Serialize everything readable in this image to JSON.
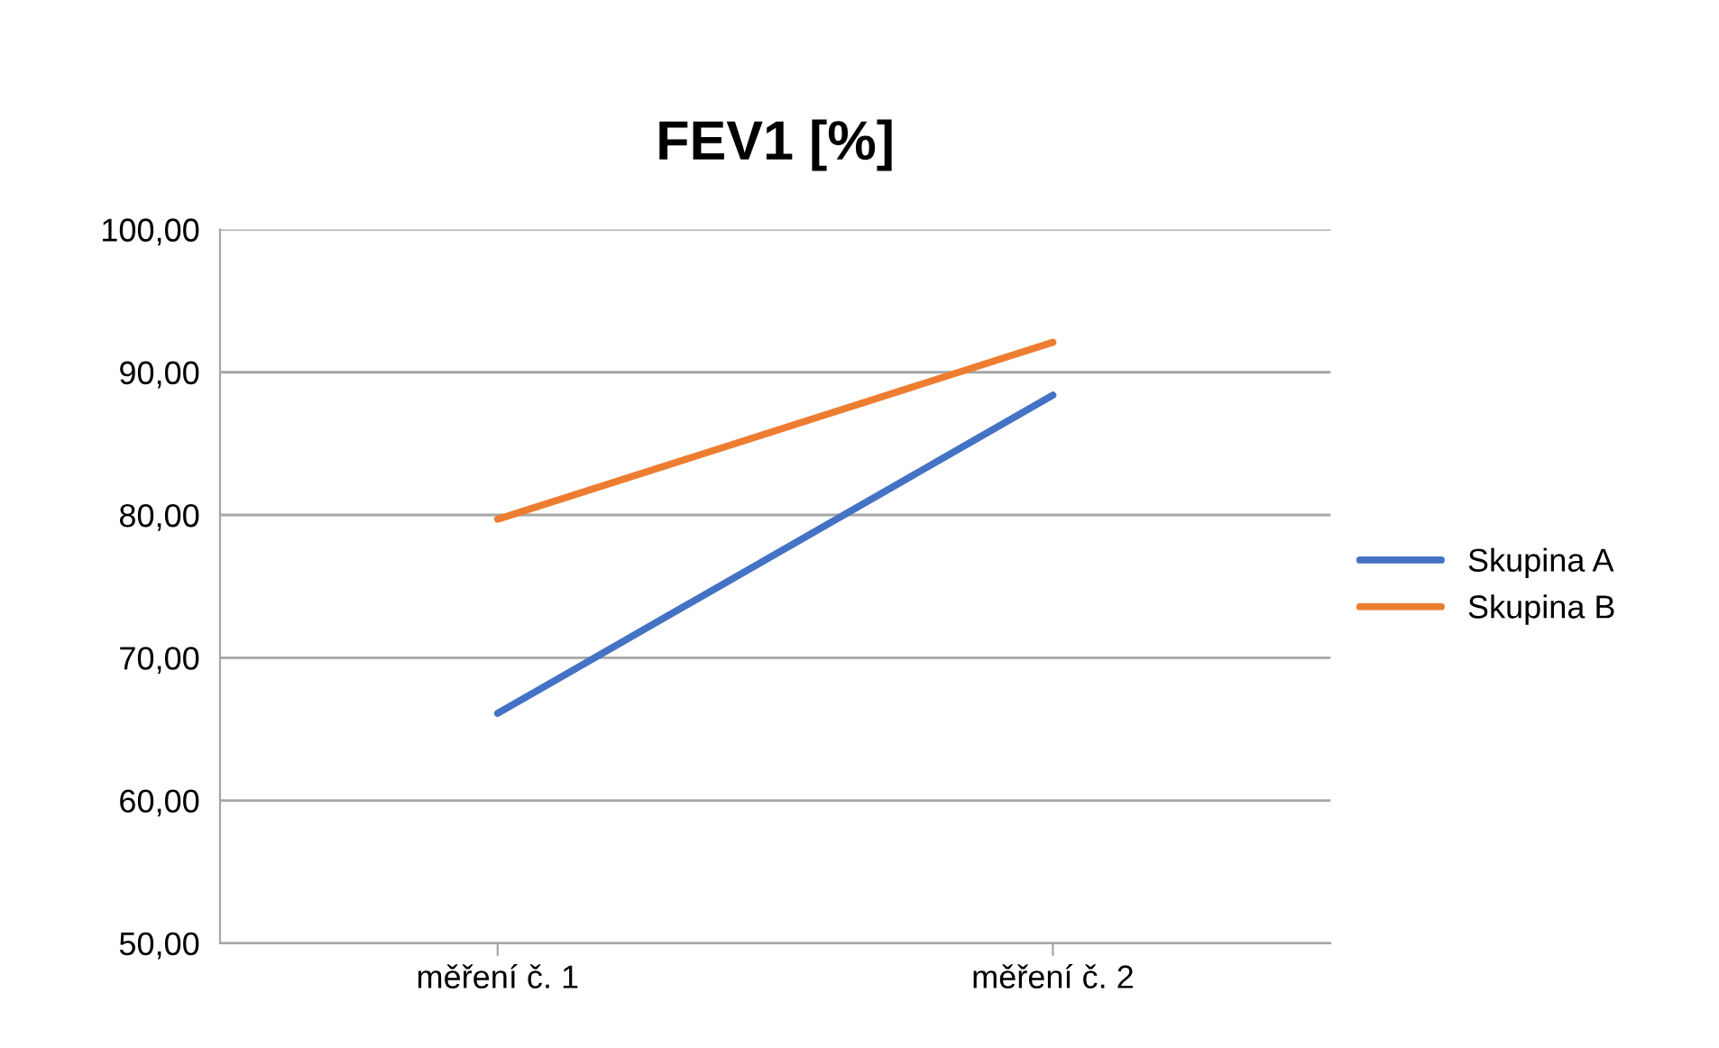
{
  "chart_data": {
    "type": "line",
    "title": "FEV1 [%]",
    "categories": [
      "měření č. 1",
      "měření č. 2"
    ],
    "series": [
      {
        "name": "Skupina A",
        "color": "#4472c4",
        "values": [
          66.1,
          88.4
        ]
      },
      {
        "name": "Skupina B",
        "color": "#ed7d31",
        "values": [
          79.7,
          92.1
        ]
      }
    ],
    "ylim": [
      50,
      100
    ],
    "yticks": [
      {
        "value": 50,
        "label": "50,00"
      },
      {
        "value": 60,
        "label": "60,00"
      },
      {
        "value": 70,
        "label": "70,00"
      },
      {
        "value": 80,
        "label": "80,00"
      },
      {
        "value": 90,
        "label": "90,00"
      },
      {
        "value": 100,
        "label": "100,00"
      }
    ],
    "grid": "y",
    "legend": "right",
    "marker": "none",
    "line_style": "solid"
  }
}
